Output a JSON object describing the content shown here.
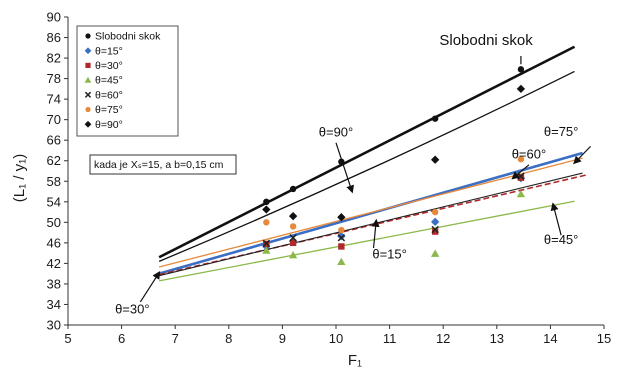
{
  "chart_data": {
    "type": "scatter",
    "xlabel": "F₁",
    "ylabel": "(L₁ / y₁)",
    "xlim": [
      5,
      15
    ],
    "ylim": [
      30,
      90
    ],
    "xticks": [
      "5",
      "6",
      "7",
      "8",
      "9",
      "10",
      "11",
      "12",
      "13",
      "14",
      "15"
    ],
    "yticks": [
      "30",
      "34",
      "38",
      "42",
      "46",
      "50",
      "54",
      "58",
      "62",
      "66",
      "70",
      "74",
      "78",
      "82",
      "86",
      "90"
    ],
    "grid": false,
    "legend_position": "top-left",
    "note": "kada je Xₛ=15, a b=0,15 cm",
    "series": [
      {
        "name": "Slobodni skok",
        "color": "#111111",
        "marker": "circle",
        "points": [
          [
            8.7,
            54.0
          ],
          [
            9.2,
            56.5
          ],
          [
            10.1,
            61.8
          ],
          [
            11.85,
            70.2
          ],
          [
            13.45,
            79.8
          ]
        ],
        "fit": [
          [
            6.7,
            43.2
          ],
          [
            14.45,
            84.2
          ]
        ],
        "fit_style": "thick"
      },
      {
        "name": "θ=15°",
        "color": "#3a6fc4",
        "marker": "diamond",
        "points": [
          [
            8.7,
            45.3
          ],
          [
            9.2,
            46.3
          ],
          [
            10.1,
            47.3
          ],
          [
            11.85,
            50.1
          ],
          [
            13.45,
            58.6
          ]
        ],
        "fit": [
          [
            6.7,
            40.0
          ],
          [
            14.6,
            63.5
          ]
        ],
        "fit_style": "thick"
      },
      {
        "name": "θ=30°",
        "color": "#b0282a",
        "marker": "square",
        "points": [
          [
            8.7,
            45.8
          ],
          [
            9.2,
            46.0
          ],
          [
            10.1,
            45.3
          ],
          [
            11.85,
            48.2
          ],
          [
            13.45,
            58.7
          ]
        ],
        "fit": [
          [
            6.7,
            39.8
          ],
          [
            14.7,
            59.3
          ]
        ],
        "fit_style": "dashed"
      },
      {
        "name": "θ=45°",
        "color": "#8cb84a",
        "marker": "triangle",
        "points": [
          [
            8.7,
            44.5
          ],
          [
            9.2,
            43.6
          ],
          [
            10.1,
            42.3
          ],
          [
            11.85,
            43.9
          ],
          [
            13.45,
            55.5
          ]
        ],
        "fit": [
          [
            6.7,
            38.6
          ],
          [
            14.45,
            54.1
          ]
        ],
        "fit_style": "solid"
      },
      {
        "name": "θ=60°",
        "color": "#222222",
        "marker": "x",
        "points": [
          [
            8.7,
            45.9
          ],
          [
            9.2,
            47.0
          ],
          [
            10.1,
            47.0
          ],
          [
            11.85,
            48.6
          ],
          [
            13.45,
            59.0
          ]
        ],
        "fit": [
          [
            6.7,
            39.6
          ],
          [
            14.6,
            59.6
          ]
        ],
        "fit_style": "thin"
      },
      {
        "name": "θ=75°",
        "color": "#e6893a",
        "marker": "circle",
        "points": [
          [
            8.7,
            50.0
          ],
          [
            9.2,
            49.2
          ],
          [
            10.1,
            48.5
          ],
          [
            11.85,
            52.0
          ],
          [
            13.45,
            62.3
          ]
        ],
        "fit": [
          [
            6.7,
            41.3
          ],
          [
            14.6,
            62.5
          ]
        ],
        "fit_style": "solid"
      },
      {
        "name": "θ=90°",
        "color": "#111111",
        "marker": "diamond",
        "points": [
          [
            8.7,
            52.5
          ],
          [
            9.2,
            51.2
          ],
          [
            10.1,
            51.0
          ],
          [
            11.85,
            62.2
          ],
          [
            13.45,
            76.0
          ]
        ],
        "fit": [
          [
            6.7,
            42.4
          ],
          [
            14.45,
            79.4
          ]
        ],
        "fit_style": "thin-curve"
      }
    ],
    "annotations": [
      {
        "text": "Slobodni skok",
        "x": 12.8,
        "y": 84.5
      },
      {
        "text": "θ=90°",
        "x": 10.0,
        "y": 66.7
      },
      {
        "text": "θ=75°",
        "x": 14.2,
        "y": 66.8
      },
      {
        "text": "θ=60°",
        "x": 13.6,
        "y": 62.4
      },
      {
        "text": "θ=15°",
        "x": 11.0,
        "y": 43.0
      },
      {
        "text": "θ=45°",
        "x": 14.2,
        "y": 45.8
      },
      {
        "text": "θ=30°",
        "x": 6.2,
        "y": 32.2
      }
    ]
  }
}
